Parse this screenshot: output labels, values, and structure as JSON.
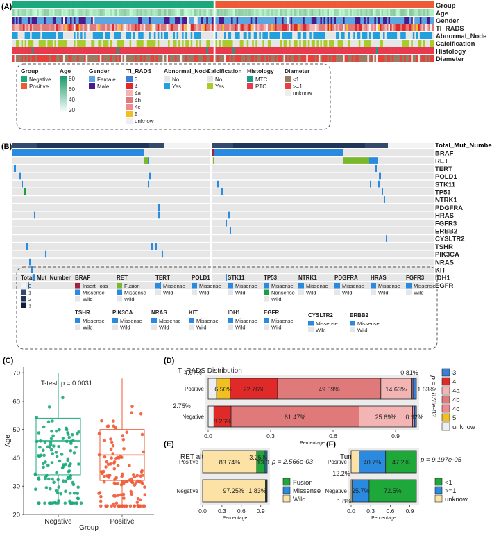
{
  "panel_labels": {
    "a": "(A)",
    "b": "(B)",
    "c": "(C)",
    "d": "(D)",
    "e": "(E)",
    "f": "(F)"
  },
  "colors": {
    "negative": "#1aa97a",
    "positive": "#ef5a36",
    "female": "#5aa6e0",
    "male": "#4b1a8c",
    "ti3": "#3a7ed8",
    "ti4": "#e02a2a",
    "ti4a": "#f3b4b4",
    "ti4b": "#e07a7a",
    "ti4c": "#f08a90",
    "ti5": "#f0c020",
    "unknow": "#eeeeee",
    "abn_no": "#e6e6e6",
    "abn_yes": "#22a0de",
    "calc_no": "#e6e6e6",
    "calc_yes": "#a8cc2a",
    "mtc": "#1a9c8c",
    "ptc": "#e83a4e",
    "diam_lt1": "#9a7a62",
    "diam_ge1": "#e8403a",
    "insert_loss": "#a22040",
    "missense": "#2a8ae0",
    "fusion": "#78b82a",
    "nonsense": "#18a040",
    "wild": "#e6e6e6",
    "tmb0": "#f3f3f3",
    "tmb1": "#334a6c",
    "tmb2": "#203658",
    "tmb3": "#0f1e3a",
    "fusion_green": "#1fa83a",
    "missense_blue": "#2a8ae0",
    "wild_tan": "#fde2a6",
    "box_neg": "#1aa97a",
    "box_pos": "#ef5a36"
  },
  "panelA": {
    "tracks": [
      "Group",
      "Age",
      "Gender",
      "TI_RADS",
      "Abnormal_Node",
      "Calcification",
      "Histology",
      "Diameter"
    ],
    "legend": {
      "group": {
        "title": "Group",
        "items": [
          "Negative",
          "Positive"
        ]
      },
      "age": {
        "title": "Age",
        "ticks": [
          "80",
          "60",
          "40",
          "20"
        ]
      },
      "gender": {
        "title": "Gender",
        "items": [
          "Female",
          "Male"
        ]
      },
      "ti_rads": {
        "title": "TI_RADS",
        "items": [
          "3",
          "4",
          "4a",
          "4b",
          "4c",
          "5",
          "unknow"
        ]
      },
      "abnormal_node": {
        "title": "Abnormal_Node",
        "items": [
          "No",
          "Yes"
        ]
      },
      "calcification": {
        "title": "Calcification",
        "items": [
          "No",
          "Yes"
        ]
      },
      "histology": {
        "title": "Histology",
        "items": [
          "MTC",
          "PTC"
        ]
      },
      "diameter": {
        "title": "Diameter",
        "items": [
          "<1",
          ">=1",
          "unknow"
        ]
      }
    }
  },
  "panelB": {
    "top_label": "Total_Mut_Number",
    "genes": [
      "BRAF",
      "RET",
      "TERT",
      "POLD1",
      "STK11",
      "TP53",
      "NTRK1",
      "PDGFRA",
      "HRAS",
      "FGFR3",
      "ERBB2",
      "CYSLTR2",
      "TSHR",
      "PIK3CA",
      "NRAS",
      "KIT",
      "IDH1",
      "EGFR"
    ],
    "legend_row1": [
      {
        "title": "Total_Mut_Number",
        "items": [
          "0",
          "1",
          "2",
          "3"
        ]
      },
      {
        "title": "BRAF",
        "items": [
          "Insert_loss",
          "Missense",
          "Wild"
        ]
      },
      {
        "title": "RET",
        "items": [
          "Fusion",
          "Missense",
          "Wild"
        ]
      },
      {
        "title": "TERT",
        "items": [
          "Missense",
          "Wild"
        ]
      },
      {
        "title": "POLD1",
        "items": [
          "Missense",
          "Wild"
        ]
      },
      {
        "title": "STK11",
        "items": [
          "Missense",
          "Wild"
        ]
      },
      {
        "title": "TP53",
        "items": [
          "Missense",
          "Nonsense",
          "Wild"
        ]
      },
      {
        "title": "NTRK1",
        "items": [
          "Missense",
          "Wild"
        ]
      },
      {
        "title": "PDGFRA",
        "items": [
          "Missense",
          "Wild"
        ]
      },
      {
        "title": "HRAS",
        "items": [
          "Missense",
          "Wild"
        ]
      },
      {
        "title": "FGFR3",
        "items": [
          "Missense",
          "Wild"
        ]
      }
    ],
    "legend_row2": [
      {
        "title": "TSHR",
        "items": [
          "Missense",
          "Wild"
        ]
      },
      {
        "title": "PIK3CA",
        "items": [
          "Missense",
          "Wild"
        ]
      },
      {
        "title": "NRAS",
        "items": [
          "Missense",
          "Wild"
        ]
      },
      {
        "title": "KIT",
        "items": [
          "Missense",
          "Wild"
        ]
      },
      {
        "title": "IDH1",
        "items": [
          "Missense",
          "Wild"
        ]
      },
      {
        "title": "EGFR",
        "items": [
          "Missense",
          "Wild"
        ]
      },
      {
        "title": "CYSLTR2",
        "items": [
          "Missense",
          "Wild"
        ]
      },
      {
        "title": "ERBB2",
        "items": [
          "Missense",
          "Wild"
        ]
      }
    ]
  },
  "chart_data": [
    {
      "id": "C",
      "type": "box",
      "annotation": "T-test, p = 0.0031",
      "xlabel": "Group",
      "ylabel": "Age",
      "categories": [
        "Negative",
        "Positive"
      ],
      "ylim": [
        20,
        72
      ],
      "yticks": [
        "20",
        "30",
        "40",
        "50",
        "60",
        "70"
      ],
      "boxes": [
        {
          "name": "Negative",
          "min": 24,
          "q1": 34,
          "median": 46,
          "q3": 54,
          "max": 70
        },
        {
          "name": "Positive",
          "min": 23,
          "q1": 32,
          "median": 41,
          "q3": 50,
          "max": 68
        }
      ]
    },
    {
      "id": "D",
      "type": "bar",
      "stacked": true,
      "orientation": "horizontal",
      "title": "TI-RADS Distribution",
      "xlabel": "Percentage",
      "categories": [
        "Positive",
        "Negative"
      ],
      "xticks": [
        "0.0",
        "0.3",
        "0.6",
        "0.9"
      ],
      "stat": "p = 1.878e-03",
      "legend": [
        "3",
        "4",
        "4a",
        "4b",
        "4c",
        "5",
        "unknow"
      ],
      "series": [
        {
          "name": "unknow",
          "values": [
            4.07,
            2.75
          ]
        },
        {
          "name": "5",
          "values": [
            6.5,
            0
          ]
        },
        {
          "name": "4",
          "values": [
            22.76,
            8.26
          ]
        },
        {
          "name": "4b",
          "values": [
            49.59,
            61.47
          ]
        },
        {
          "name": "4a",
          "values": [
            14.63,
            25.69
          ]
        },
        {
          "name": "4c",
          "values": [
            0.81,
            0.92
          ]
        },
        {
          "name": "3",
          "values": [
            1.63,
            0.92
          ]
        }
      ],
      "labels": {
        "pos_unknow": "4.07%",
        "pos_5": "6.50%",
        "pos_4": "22.76%",
        "pos_4b": "49.59%",
        "pos_4a": "14.63%",
        "pos_4c": "0.81%",
        "pos_3": "1.63%",
        "neg_unknow": "2.75%",
        "neg_4": "8.26%",
        "neg_4b": "61.47%",
        "neg_4a": "25.69%",
        "neg_end": "0.92%"
      }
    },
    {
      "id": "E",
      "type": "bar",
      "stacked": true,
      "orientation": "horizontal",
      "title": "RET alteration",
      "xlabel": "Percentage",
      "categories": [
        "Positive",
        "Negative"
      ],
      "xticks": [
        "0.0",
        "0.3",
        "0.6",
        "0.9"
      ],
      "stat": "p = 2.566e-03",
      "legend": [
        "Fusion",
        "Missense",
        "Wild"
      ],
      "series": [
        {
          "name": "Wild",
          "values": [
            83.74,
            97.25
          ]
        },
        {
          "name": "Fusion",
          "values": [
            13.01,
            1.83
          ]
        },
        {
          "name": "Missense",
          "values": [
            3.25,
            0.92
          ]
        }
      ],
      "labels": {
        "pos_wild": "83.74%",
        "pos_fusion": "13.0",
        "pos_missense": "3.25%",
        "neg_wild": "97.25%",
        "neg_fusion": "1.83%"
      }
    },
    {
      "id": "F",
      "type": "bar",
      "stacked": true,
      "orientation": "horizontal",
      "title": "Tumor diameter",
      "xlabel": "Percentage",
      "categories": [
        "Positive",
        "Negative"
      ],
      "xticks": [
        "0.0",
        "0.3",
        "0.6",
        "0.9"
      ],
      "stat": "p = 9.197e-05",
      "legend": [
        "<1",
        ">=1",
        "unknow"
      ],
      "series": [
        {
          "name": "unknow",
          "values": [
            12.2,
            1.8
          ]
        },
        {
          "name": ">=1",
          "values": [
            40.7,
            25.7
          ]
        },
        {
          "name": "<1",
          "values": [
            47.2,
            72.5
          ]
        }
      ],
      "labels": {
        "pos_unknow": "12.2%",
        "pos_ge1": "40.7%",
        "pos_lt1": "47.2%",
        "neg_unknow": "1.8%",
        "neg_ge1": "25.7%",
        "neg_lt1": "72.5%"
      }
    }
  ]
}
